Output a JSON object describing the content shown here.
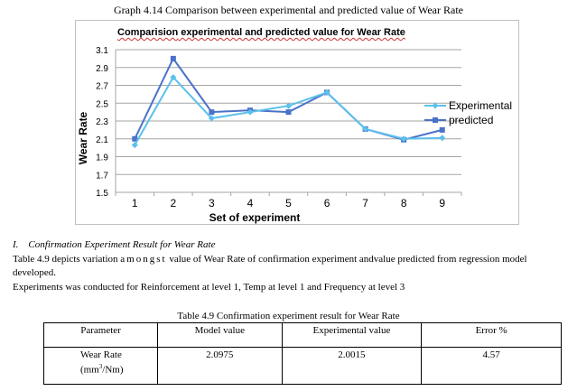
{
  "graph_caption": "Graph 4.14 Comparison between experimental and predicted value of Wear Rate",
  "chart_data": {
    "type": "line",
    "title": "Comparision experimental and predicted value for Wear Rate",
    "title_misspelled_part": "Comparision",
    "title_rest": " experimental and predicted value for Wear Rate",
    "xlabel": "Set of experiment",
    "ylabel": "Wear Rate",
    "categories": [
      "1",
      "2",
      "3",
      "4",
      "5",
      "6",
      "7",
      "8",
      "9"
    ],
    "ylim": [
      1.5,
      3.1
    ],
    "yticks": [
      "3.1",
      "2.9",
      "2.7",
      "2.5",
      "2.3",
      "2.1",
      "1.9",
      "1.7",
      "1.5"
    ],
    "grid": true,
    "legend_position": "right",
    "series": [
      {
        "name": "Experimental",
        "color": "#5bc0eb",
        "marker": "diamond",
        "values": [
          2.03,
          2.79,
          2.33,
          2.4,
          2.47,
          2.62,
          2.21,
          2.1,
          2.11
        ]
      },
      {
        "name": "predicted",
        "color": "#4a72c8",
        "marker": "square",
        "values": [
          2.1,
          3.0,
          2.4,
          2.42,
          2.4,
          2.62,
          2.21,
          2.09,
          2.2
        ]
      }
    ]
  },
  "section": {
    "number": "I.",
    "heading": "Confirmation Experiment Result for Wear Rate",
    "para1_a": "Table 4.9 depicts variation",
    "para1_spaced": "amongst",
    "para1_b": "value of Wear Rate of confirmation experiment andvalue predicted from regression model developed.",
    "para2": "Experiments was conducted for Reinforcement at level 1, Temp at level 1 and Frequency at  level 3"
  },
  "table": {
    "caption": "Table 4.9 Confirmation experiment result for Wear Rate",
    "headers": [
      "Parameter",
      "Model value",
      "Experimental value",
      "Error %"
    ],
    "row": {
      "parameter_line1": "Wear Rate",
      "parameter_line2_a": "(mm",
      "parameter_sup": "3",
      "parameter_line2_b": "/Nm)",
      "model": "2.0975",
      "experimental": "2.0015",
      "error": "4.57"
    }
  }
}
